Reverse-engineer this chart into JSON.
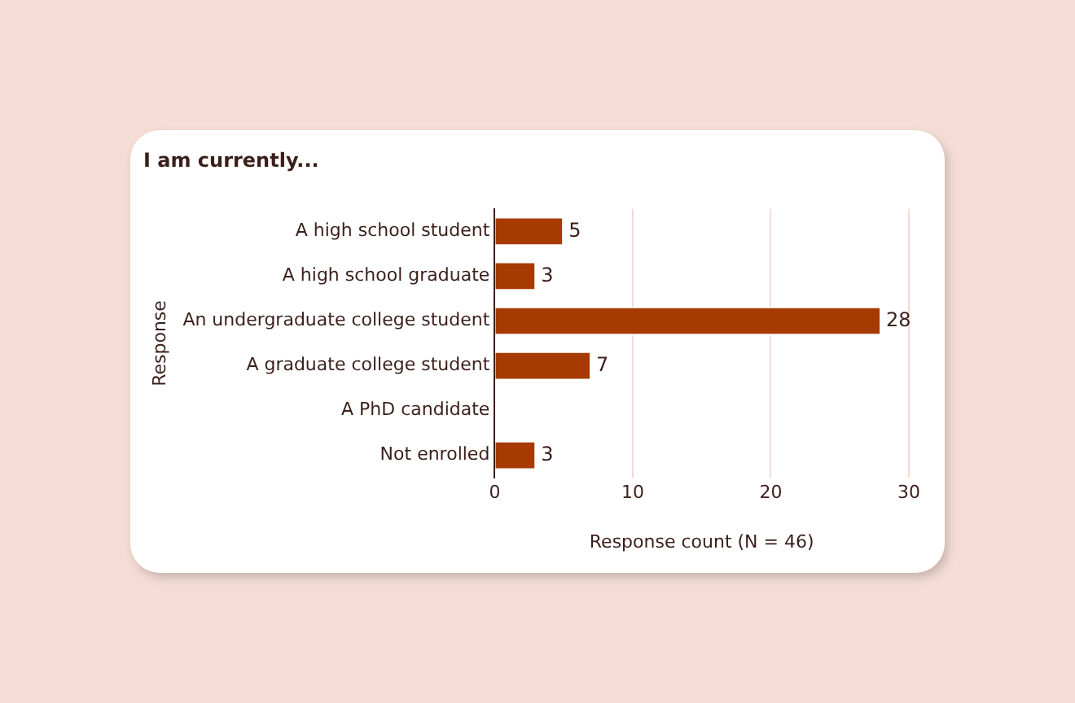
{
  "chart_data": {
    "type": "bar",
    "orientation": "horizontal",
    "title": "I am currently...",
    "xlabel": "Response count (N = 46)",
    "ylabel": "Response",
    "categories": [
      "A high school student",
      "A high school graduate",
      "An undergraduate college student",
      "A graduate college student",
      "A PhD candidate",
      "Not enrolled"
    ],
    "values": [
      5,
      3,
      28,
      7,
      0,
      3
    ],
    "value_labels": [
      "5",
      "3",
      "28",
      "7",
      null,
      "3"
    ],
    "color": "#a63a00",
    "xlim": [
      0,
      30
    ],
    "xticks": [
      0,
      10,
      20,
      30
    ],
    "grid": "x",
    "legend": false
  }
}
